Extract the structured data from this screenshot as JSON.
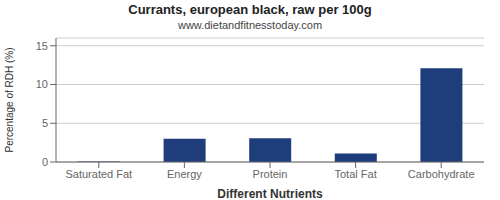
{
  "chart_data": {
    "type": "bar",
    "title": "Currants, european black, raw per 100g",
    "subtitle": "www.dietandfitnesstoday.com",
    "xlabel": "Different Nutrients",
    "ylabel": "Percentage of RDH (%)",
    "categories": [
      "Saturated Fat",
      "Energy",
      "Protein",
      "Total Fat",
      "Carbohydrate"
    ],
    "values": [
      0.05,
      3.0,
      3.05,
      1.1,
      12.1
    ],
    "color": "#1f3d7a",
    "ylim": [
      0,
      16
    ],
    "yticks": [
      0,
      5,
      10,
      15
    ],
    "grid": true
  }
}
